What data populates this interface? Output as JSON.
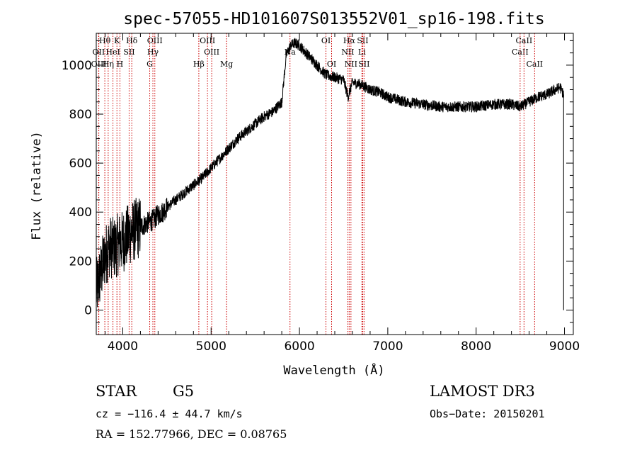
{
  "chart_data": {
    "type": "line",
    "title": "spec-57055-HD101607S013552V01_sp16-198.fits",
    "xlabel": "Wavelength (Å)",
    "ylabel": "Flux (relative)",
    "xlim": [
      3700,
      9100
    ],
    "ylim": [
      -100,
      1130
    ],
    "x_ticks": [
      4000,
      5000,
      6000,
      7000,
      8000,
      9000
    ],
    "y_ticks": [
      0,
      200,
      400,
      600,
      800,
      1000
    ],
    "series": [
      {
        "name": "flux",
        "x": [
          3700,
          3750,
          3800,
          3850,
          3900,
          3950,
          4000,
          4050,
          4100,
          4150,
          4200,
          4250,
          4300,
          4350,
          4400,
          4450,
          4500,
          4600,
          4700,
          4800,
          4900,
          5000,
          5100,
          5200,
          5300,
          5400,
          5500,
          5600,
          5700,
          5800,
          5850,
          5900,
          5950,
          6000,
          6100,
          6200,
          6300,
          6400,
          6500,
          6550,
          6600,
          6700,
          6800,
          6900,
          7000,
          7200,
          7400,
          7600,
          7800,
          8000,
          8200,
          8400,
          8500,
          8600,
          8700,
          8800,
          8900,
          8950,
          8990
        ],
        "y": [
          80,
          150,
          220,
          260,
          250,
          270,
          280,
          300,
          320,
          330,
          340,
          350,
          360,
          370,
          390,
          400,
          420,
          450,
          480,
          510,
          540,
          580,
          620,
          660,
          700,
          730,
          760,
          790,
          810,
          850,
          1040,
          1080,
          1090,
          1080,
          1040,
          1000,
          960,
          950,
          940,
          870,
          930,
          920,
          900,
          890,
          870,
          850,
          840,
          830,
          830,
          830,
          840,
          840,
          830,
          850,
          870,
          880,
          900,
          910,
          880
        ]
      }
    ],
    "lines": [
      {
        "name": "Hθ",
        "x": 3797,
        "row": 1
      },
      {
        "name": "OII",
        "x": 3727,
        "row": 2
      },
      {
        "name": "OIII",
        "x": 3729,
        "row": 3
      },
      {
        "name": "K",
        "x": 3934,
        "row": 1
      },
      {
        "name": "HeI",
        "x": 3889,
        "row": 2
      },
      {
        "name": "Hη",
        "x": 3835,
        "row": 3
      },
      {
        "name": "SII",
        "x": 4072,
        "row": 2
      },
      {
        "name": "H",
        "x": 3968,
        "row": 3
      },
      {
        "name": "Hδ",
        "x": 4102,
        "row": 1
      },
      {
        "name": "OIII",
        "x": 4363,
        "row": 1
      },
      {
        "name": "Hγ",
        "x": 4341,
        "row": 2
      },
      {
        "name": "G",
        "x": 4305,
        "row": 3
      },
      {
        "name": "OIII",
        "x": 4959,
        "row": 1
      },
      {
        "name": "OIII",
        "x": 5007,
        "row": 2
      },
      {
        "name": "Hβ",
        "x": 4861,
        "row": 3
      },
      {
        "name": "Mg",
        "x": 5175,
        "row": 3
      },
      {
        "name": "Na",
        "x": 5893,
        "row": 2
      },
      {
        "name": "OI",
        "x": 6300,
        "row": 1
      },
      {
        "name": "OI",
        "x": 6364,
        "row": 3
      },
      {
        "name": "Hα",
        "x": 6563,
        "row": 1
      },
      {
        "name": "NII",
        "x": 6548,
        "row": 2
      },
      {
        "name": "NII",
        "x": 6583,
        "row": 3
      },
      {
        "name": "SII",
        "x": 6716,
        "row": 1
      },
      {
        "name": "Li",
        "x": 6707,
        "row": 2
      },
      {
        "name": "SII",
        "x": 6731,
        "row": 3
      },
      {
        "name": "CaII",
        "x": 8498,
        "row": 2
      },
      {
        "name": "CaII",
        "x": 8542,
        "row": 1
      },
      {
        "name": "CaII",
        "x": 8662,
        "row": 3
      }
    ],
    "colors": {
      "spectrum": "#000000",
      "lines": "#cc0000"
    }
  },
  "info": {
    "object_type": "STAR",
    "subclass": "G5",
    "survey": "LAMOST DR3",
    "redshift": "cz = −116.4 ± 44.7 km/s",
    "obs_date": "Obs−Date: 20150201",
    "coords": "RA = 152.77966, DEC =    0.08765"
  }
}
